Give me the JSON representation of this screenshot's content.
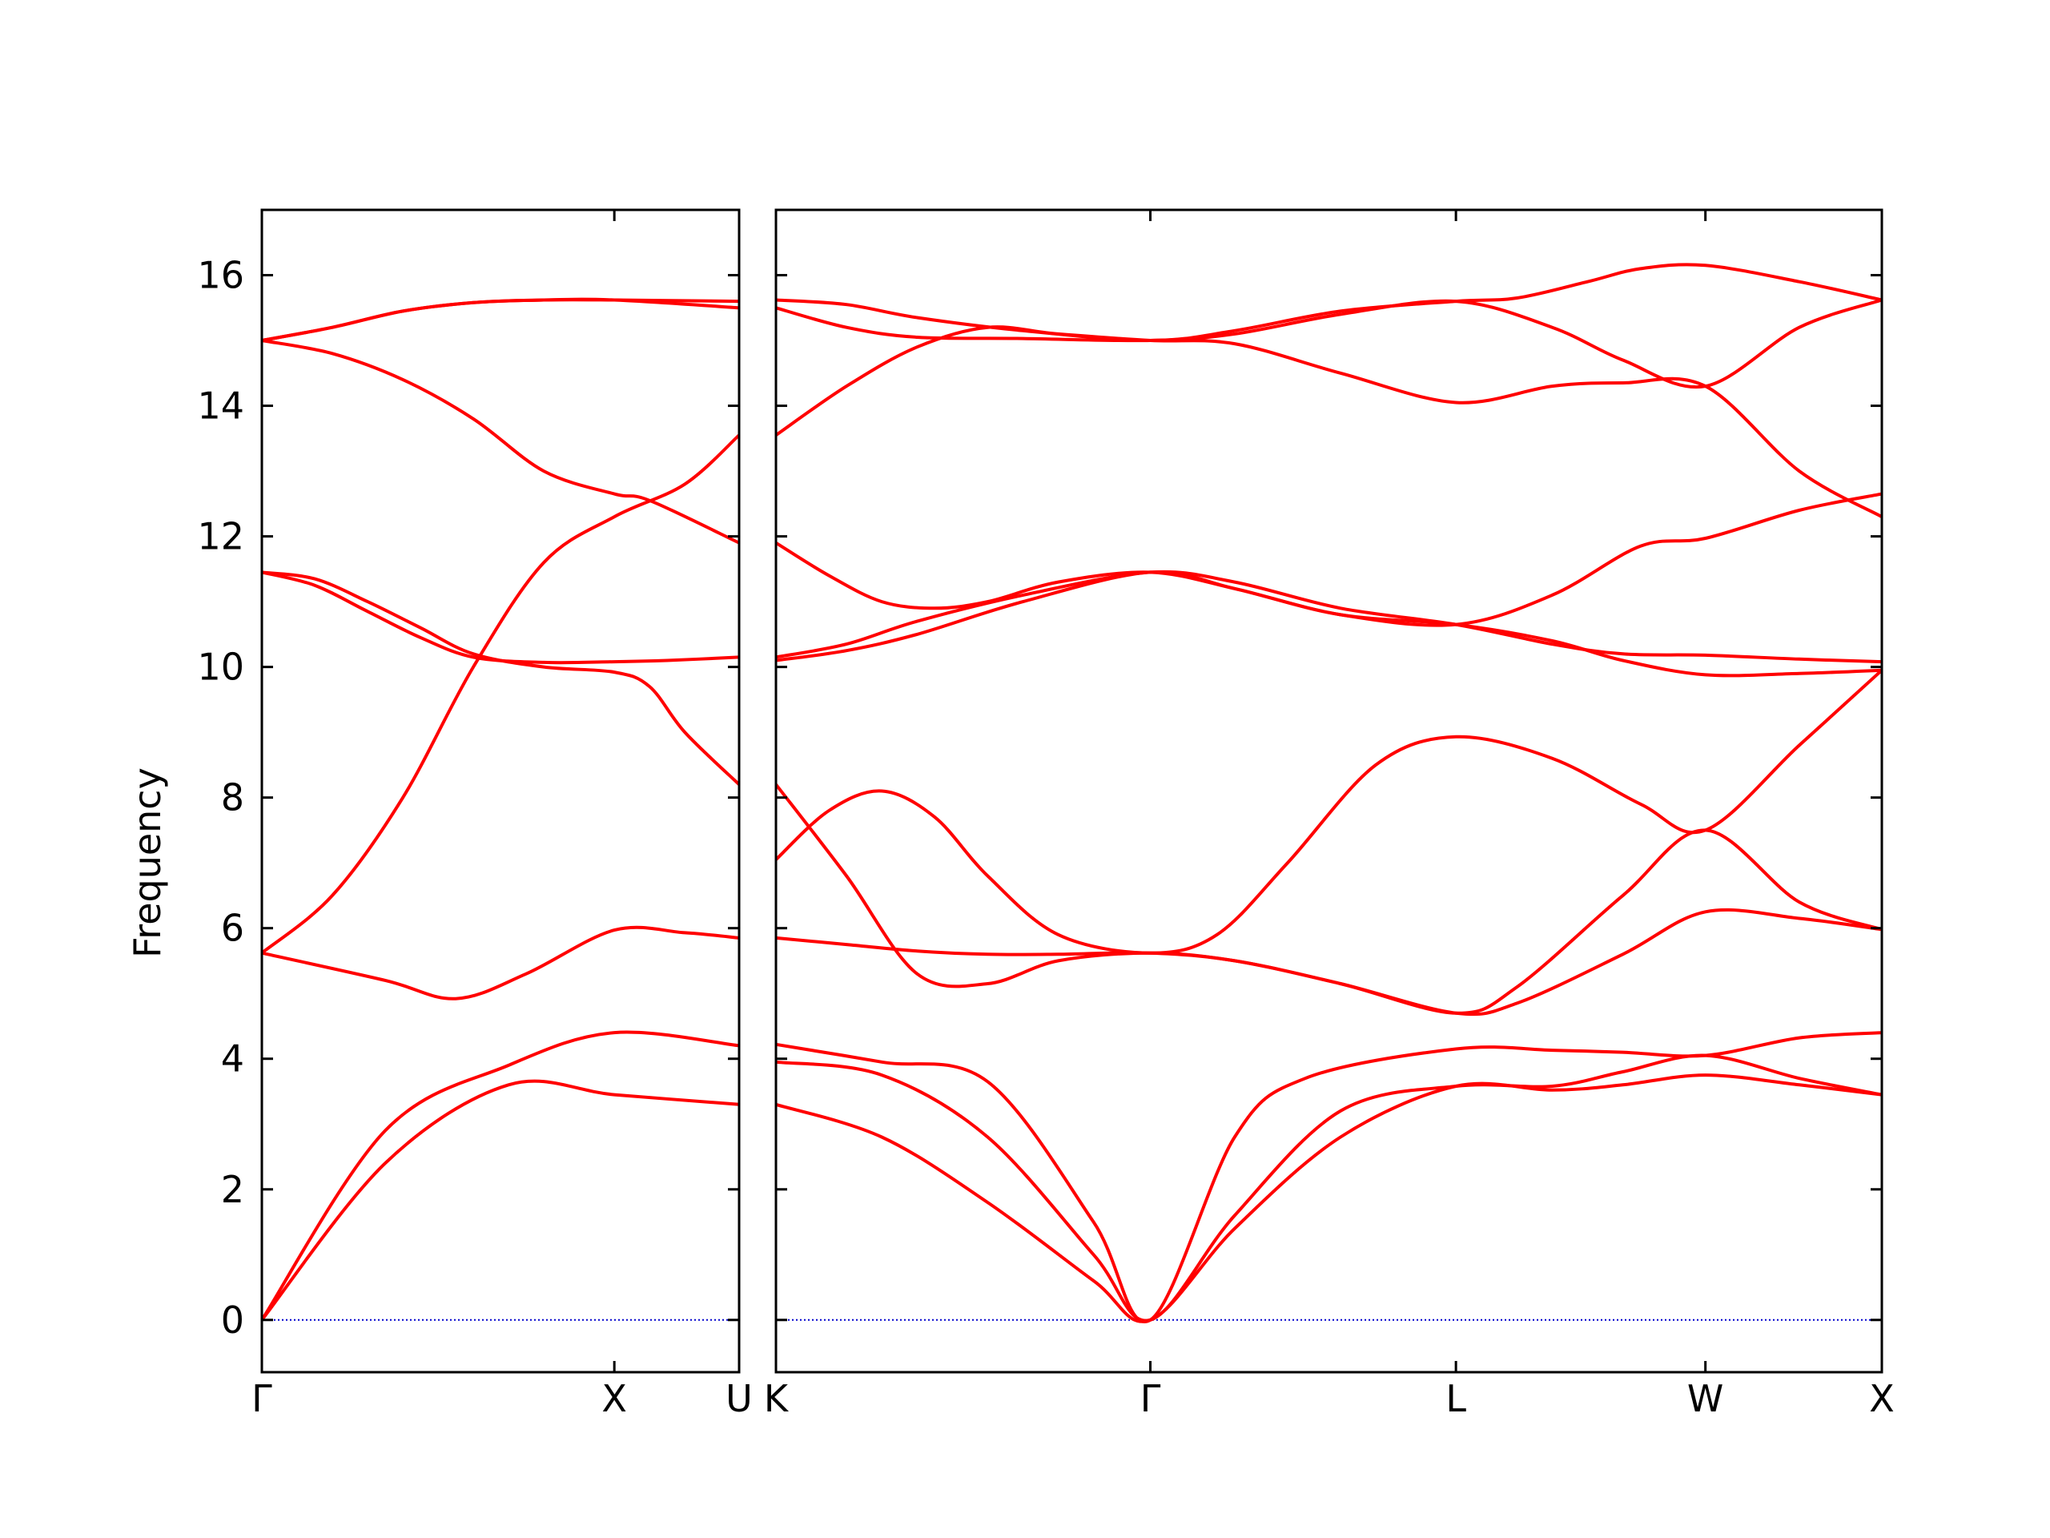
{
  "chart_data": {
    "type": "line",
    "title": "",
    "xlabel": "",
    "ylabel": "Frequency",
    "ylim": [
      -0.8,
      17
    ],
    "yticks": [
      0,
      2,
      4,
      6,
      8,
      10,
      12,
      14,
      16
    ],
    "grid": false,
    "legend": "none",
    "colors": {
      "bands": "#ff0000",
      "zero_line": "#0000cc",
      "axes": "#000000",
      "background": "#ffffff"
    },
    "panels": [
      {
        "path_labels": [
          {
            "label": "Γ",
            "k": 0.0
          },
          {
            "label": "X",
            "k": 1.0
          },
          {
            "label": "U",
            "k": 1.354
          }
        ],
        "xlim": [
          0,
          1.354
        ],
        "bands": [
          {
            "k": [
              0,
              0.35,
              0.7,
              1.0,
              1.354
            ],
            "f": [
              0,
              2.4,
              3.6,
              3.45,
              3.3
            ]
          },
          {
            "k": [
              0,
              0.35,
              0.7,
              1.0,
              1.354
            ],
            "f": [
              0,
              2.9,
              3.9,
              4.4,
              4.2
            ]
          },
          {
            "k": [
              0,
              0.35,
              0.55,
              0.75,
              1.0,
              1.2,
              1.354
            ],
            "f": [
              5.62,
              5.2,
              4.92,
              5.3,
              5.97,
              5.93,
              5.85
            ]
          },
          {
            "k": [
              0,
              0.2,
              0.4,
              0.6,
              0.8,
              1.0,
              1.2,
              1.354
            ],
            "f": [
              5.62,
              6.5,
              8.0,
              10.0,
              11.6,
              12.3,
              12.8,
              13.55
            ]
          },
          {
            "k": [
              0,
              0.15,
              0.3,
              0.45,
              0.6,
              0.8,
              1.0,
              1.15,
              1.354
            ],
            "f": [
              11.45,
              11.25,
              10.85,
              10.45,
              10.15,
              10.07,
              10.08,
              10.1,
              10.15
            ]
          },
          {
            "k": [
              0,
              0.15,
              0.3,
              0.45,
              0.6,
              0.8,
              1.0,
              1.1,
              1.2,
              1.354
            ],
            "f": [
              11.45,
              11.35,
              11.0,
              10.6,
              10.2,
              10.0,
              9.92,
              9.7,
              9.0,
              8.2
            ]
          },
          {
            "k": [
              0,
              0.2,
              0.4,
              0.6,
              0.8,
              1.0,
              1.1,
              1.354
            ],
            "f": [
              15.0,
              14.8,
              14.4,
              13.8,
              13.0,
              12.65,
              12.55,
              11.9
            ]
          },
          {
            "k": [
              0,
              0.2,
              0.4,
              0.6,
              0.8,
              1.0,
              1.354
            ],
            "f": [
              15.0,
              15.2,
              15.45,
              15.58,
              15.62,
              15.62,
              15.6
            ]
          },
          {
            "k": [
              0,
              0.2,
              0.4,
              0.6,
              0.8,
              1.0,
              1.354
            ],
            "f": [
              15.0,
              15.2,
              15.45,
              15.58,
              15.62,
              15.62,
              15.5
            ]
          }
        ]
      },
      {
        "path_labels": [
          {
            "label": "K",
            "k": 0.0
          },
          {
            "label": "Γ",
            "k": 1.061
          },
          {
            "label": "L",
            "k": 1.927
          },
          {
            "label": "W",
            "k": 2.634
          },
          {
            "label": "X",
            "k": 3.134
          }
        ],
        "xlim": [
          0,
          3.134
        ],
        "bands": [
          {
            "k": [
              0,
              0.3,
              0.6,
              0.9,
              1.061,
              1.3,
              1.6,
              1.927,
              2.2,
              2.4,
              2.634,
              2.9,
              3.134
            ],
            "f": [
              3.3,
              2.8,
              1.8,
              0.6,
              0.0,
              1.4,
              2.8,
              3.58,
              3.52,
              3.6,
              3.75,
              3.6,
              3.45
            ]
          },
          {
            "k": [
              0,
              0.3,
              0.6,
              0.9,
              1.061,
              1.3,
              1.6,
              1.927,
              2.2,
              2.4,
              2.634,
              2.9,
              3.134
            ],
            "f": [
              3.95,
              3.75,
              2.8,
              1.0,
              0.0,
              1.6,
              3.2,
              3.58,
              3.58,
              3.8,
              4.05,
              3.7,
              3.45
            ]
          },
          {
            "k": [
              0,
              0.3,
              0.6,
              0.9,
              1.061,
              1.3,
              1.5,
              1.927,
              2.2,
              2.4,
              2.634,
              2.9,
              3.134
            ],
            "f": [
              4.22,
              3.95,
              3.65,
              1.5,
              0.0,
              2.8,
              3.7,
              4.15,
              4.13,
              4.1,
              4.05,
              4.32,
              4.4
            ]
          },
          {
            "k": [
              0,
              0.2,
              0.4,
              0.6,
              0.8,
              1.061,
              1.3,
              1.6,
              1.927,
              2.1,
              2.4,
              2.634,
              2.9,
              3.134
            ],
            "f": [
              5.85,
              5.75,
              5.65,
              5.6,
              5.6,
              5.62,
              5.5,
              5.15,
              4.7,
              4.85,
              5.6,
              6.25,
              6.15,
              5.98
            ]
          },
          {
            "k": [
              0,
              0.2,
              0.4,
              0.6,
              0.8,
              1.061,
              1.3,
              1.6,
              1.927,
              2.1,
              2.4,
              2.634,
              2.9,
              3.134
            ],
            "f": [
              8.2,
              6.8,
              5.3,
              5.15,
              5.5,
              5.62,
              5.5,
              5.15,
              4.7,
              5.1,
              6.5,
              7.5,
              6.4,
              5.98
            ]
          },
          {
            "k": [
              0,
              0.15,
              0.3,
              0.45,
              0.6,
              0.8,
              1.061,
              1.25,
              1.45,
              1.7,
              1.927,
              2.2,
              2.45,
              2.634,
              2.9,
              3.134
            ],
            "f": [
              7.05,
              7.8,
              8.1,
              7.7,
              6.8,
              5.9,
              5.62,
              5.9,
              7.0,
              8.5,
              8.93,
              8.6,
              7.9,
              7.5,
              8.8,
              9.95
            ]
          },
          {
            "k": [
              0,
              0.2,
              0.4,
              0.7,
              1.061,
              1.3,
              1.6,
              1.927,
              2.2,
              2.4,
              2.634,
              2.9,
              3.134
            ],
            "f": [
              10.1,
              10.25,
              10.5,
              11.0,
              11.45,
              11.2,
              10.8,
              10.65,
              10.4,
              10.1,
              9.88,
              9.9,
              9.95
            ]
          },
          {
            "k": [
              0,
              0.2,
              0.4,
              0.7,
              1.061,
              1.3,
              1.6,
              1.927,
              2.2,
              2.4,
              2.634,
              2.9,
              3.134
            ],
            "f": [
              10.15,
              10.35,
              10.7,
              11.1,
              11.45,
              11.3,
              10.9,
              10.65,
              10.35,
              10.2,
              10.18,
              10.12,
              10.08
            ]
          },
          {
            "k": [
              0,
              0.15,
              0.3,
              0.45,
              0.6,
              0.8,
              1.061,
              1.3,
              1.6,
              1.927,
              2.2,
              2.45,
              2.634,
              2.9,
              3.134
            ],
            "f": [
              11.9,
              11.4,
              11.0,
              10.9,
              11.0,
              11.3,
              11.45,
              11.2,
              10.8,
              10.65,
              11.1,
              11.85,
              11.97,
              12.4,
              12.65
            ]
          },
          {
            "k": [
              0,
              0.2,
              0.4,
              0.6,
              0.8,
              1.061,
              1.3,
              1.6,
              1.927,
              2.2,
              2.4,
              2.634,
              2.9,
              3.134
            ],
            "f": [
              13.55,
              14.3,
              14.9,
              15.2,
              15.1,
              15.0,
              14.95,
              14.5,
              14.05,
              14.3,
              14.35,
              14.3,
              13.0,
              12.3
            ]
          },
          {
            "k": [
              0,
              0.2,
              0.4,
              0.7,
              1.061,
              1.3,
              1.6,
              1.927,
              2.2,
              2.4,
              2.634,
              2.9,
              3.134
            ],
            "f": [
              15.5,
              15.2,
              15.05,
              15.03,
              15.0,
              15.1,
              15.4,
              15.6,
              15.2,
              14.7,
              14.3,
              15.2,
              15.62
            ]
          },
          {
            "k": [
              0,
              0.2,
              0.4,
              0.7,
              1.061,
              1.3,
              1.6,
              1.927,
              2.1,
              2.3,
              2.45,
              2.634,
              2.9,
              3.134
            ],
            "f": [
              15.62,
              15.55,
              15.35,
              15.15,
              15.0,
              15.15,
              15.45,
              15.6,
              15.65,
              15.9,
              16.1,
              16.15,
              15.9,
              15.62
            ]
          }
        ]
      }
    ]
  }
}
